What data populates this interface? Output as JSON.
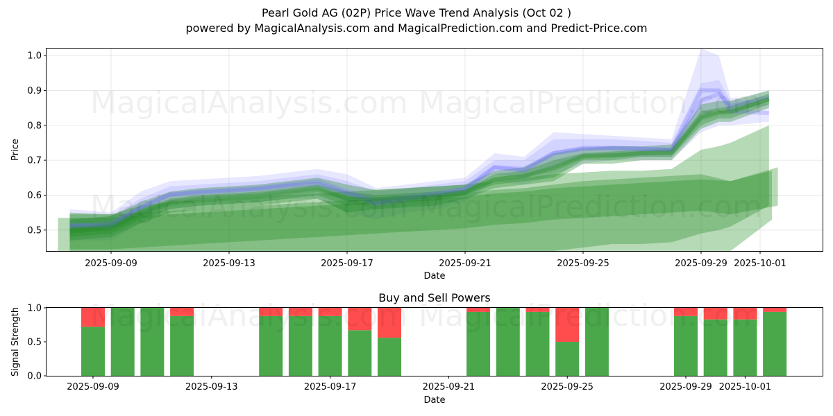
{
  "header": {
    "title": "Pearl Gold AG (02P) Price Wave Trend Analysis (Oct 02 )",
    "subtitle": "powered by MagicalAnalysis.com and MagicalPrediction.com and Predict-Price.com"
  },
  "watermarks": [
    "MagicalAnalysis.com",
    "MagicalPrediction.com"
  ],
  "colors": {
    "green": "#228b22",
    "blue": "#6b6bff",
    "buy": "#4aa84a",
    "sell": "#ff4d4d"
  },
  "chart_data": [
    {
      "type": "area",
      "title": "",
      "xlabel": "Date",
      "ylabel": "Price",
      "ylim": [
        0.44,
        1.02
      ],
      "yticks": [
        "0.5",
        "0.6",
        "0.7",
        "0.8",
        "0.9",
        "1.0"
      ],
      "xticks": [
        "2025-09-09",
        "2025-09-13",
        "2025-09-17",
        "2025-09-21",
        "2025-09-25",
        "2025-09-29",
        "2025-10-01"
      ],
      "date_origin": "2025-09-09",
      "series": [
        {
          "name": "blue-band-1",
          "color": "blue",
          "x": [
            -1.4,
            0,
            1,
            2,
            3,
            4,
            5,
            6,
            7,
            8,
            9,
            10,
            11,
            12,
            13,
            14,
            15,
            16,
            17,
            18,
            19,
            20,
            20.6,
            21,
            22.3
          ],
          "upper": [
            0.56,
            0.55,
            0.61,
            0.64,
            0.645,
            0.65,
            0.655,
            0.665,
            0.675,
            0.66,
            0.62,
            0.63,
            0.64,
            0.65,
            0.72,
            0.71,
            0.78,
            0.775,
            0.77,
            0.765,
            0.76,
            1.02,
            1.0,
            0.88,
            0.86
          ],
          "lower": [
            0.47,
            0.47,
            0.52,
            0.56,
            0.57,
            0.575,
            0.58,
            0.59,
            0.59,
            0.55,
            0.53,
            0.55,
            0.56,
            0.58,
            0.64,
            0.63,
            0.66,
            0.69,
            0.7,
            0.7,
            0.7,
            0.78,
            0.8,
            0.8,
            0.81
          ]
        },
        {
          "name": "blue-band-2",
          "color": "blue",
          "x": [
            -1.4,
            0,
            1,
            2,
            3,
            4,
            5,
            6,
            7,
            8,
            9,
            10,
            11,
            12,
            13,
            14,
            15,
            16,
            17,
            18,
            19,
            20,
            20.6,
            21,
            22.3
          ],
          "upper": [
            0.53,
            0.54,
            0.59,
            0.625,
            0.63,
            0.635,
            0.64,
            0.65,
            0.66,
            0.64,
            0.61,
            0.62,
            0.63,
            0.64,
            0.7,
            0.7,
            0.76,
            0.76,
            0.76,
            0.755,
            0.75,
            0.92,
            0.93,
            0.87,
            0.9
          ],
          "lower": [
            0.49,
            0.5,
            0.54,
            0.58,
            0.59,
            0.595,
            0.6,
            0.61,
            0.62,
            0.58,
            0.56,
            0.57,
            0.58,
            0.6,
            0.66,
            0.65,
            0.68,
            0.71,
            0.71,
            0.71,
            0.71,
            0.82,
            0.85,
            0.84,
            0.86
          ]
        },
        {
          "name": "green-band-1",
          "color": "green",
          "x": [
            -1.4,
            0,
            1,
            2,
            3,
            4,
            5,
            6,
            7,
            8,
            9,
            10,
            11,
            12,
            13,
            14,
            15,
            16,
            17,
            18,
            19,
            20,
            20.6,
            21,
            22.3
          ],
          "upper": [
            0.53,
            0.54,
            0.58,
            0.61,
            0.62,
            0.625,
            0.63,
            0.64,
            0.65,
            0.63,
            0.615,
            0.62,
            0.625,
            0.63,
            0.67,
            0.68,
            0.72,
            0.735,
            0.74,
            0.74,
            0.745,
            0.86,
            0.87,
            0.87,
            0.9
          ],
          "lower": [
            0.47,
            0.48,
            0.52,
            0.55,
            0.56,
            0.565,
            0.57,
            0.58,
            0.59,
            0.55,
            0.56,
            0.565,
            0.57,
            0.59,
            0.62,
            0.63,
            0.64,
            0.69,
            0.69,
            0.7,
            0.7,
            0.79,
            0.81,
            0.81,
            0.85
          ]
        },
        {
          "name": "green-band-2",
          "color": "green",
          "x": [
            -1.4,
            0,
            1,
            2,
            3,
            4,
            5,
            6,
            7,
            8,
            9,
            10,
            11,
            12,
            13,
            14,
            15,
            16,
            17,
            18,
            19,
            20,
            20.6,
            21,
            22.3
          ],
          "upper": [
            0.51,
            0.52,
            0.56,
            0.59,
            0.6,
            0.605,
            0.61,
            0.62,
            0.63,
            0.61,
            0.6,
            0.605,
            0.61,
            0.615,
            0.66,
            0.67,
            0.7,
            0.72,
            0.725,
            0.73,
            0.735,
            0.84,
            0.85,
            0.855,
            0.89
          ],
          "lower": [
            0.48,
            0.49,
            0.53,
            0.56,
            0.57,
            0.575,
            0.58,
            0.59,
            0.6,
            0.57,
            0.575,
            0.58,
            0.585,
            0.6,
            0.63,
            0.64,
            0.65,
            0.7,
            0.7,
            0.71,
            0.71,
            0.8,
            0.82,
            0.82,
            0.86
          ]
        },
        {
          "name": "green-band-3",
          "color": "green",
          "x": [
            -1.4,
            0,
            1,
            2,
            3,
            4,
            5,
            6,
            7,
            8,
            9,
            10,
            11,
            12,
            13,
            14,
            15,
            16,
            17,
            18,
            19,
            20,
            20.6,
            21,
            22.3
          ],
          "upper": [
            0.55,
            0.545,
            0.57,
            0.58,
            0.585,
            0.59,
            0.595,
            0.6,
            0.605,
            0.61,
            0.615,
            0.62,
            0.625,
            0.63,
            0.64,
            0.65,
            0.66,
            0.665,
            0.67,
            0.67,
            0.675,
            0.73,
            0.74,
            0.75,
            0.8
          ],
          "lower": [
            0.44,
            0.44,
            0.44,
            0.44,
            0.44,
            0.44,
            0.44,
            0.44,
            0.44,
            0.44,
            0.44,
            0.44,
            0.44,
            0.44,
            0.44,
            0.44,
            0.44,
            0.45,
            0.46,
            0.46,
            0.465,
            0.49,
            0.5,
            0.51,
            0.57
          ]
        },
        {
          "name": "green-band-4",
          "color": "green",
          "x": [
            -1.8,
            -0.2,
            1,
            2,
            3,
            4,
            5,
            6,
            7,
            8,
            9,
            10,
            11,
            12,
            13,
            14,
            15,
            16,
            17,
            18,
            19,
            20,
            21,
            22.4
          ],
          "upper": [
            0.535,
            0.535,
            0.54,
            0.545,
            0.55,
            0.555,
            0.56,
            0.565,
            0.57,
            0.575,
            0.58,
            0.585,
            0.59,
            0.595,
            0.605,
            0.61,
            0.62,
            0.625,
            0.63,
            0.635,
            0.64,
            0.645,
            0.64,
            0.67
          ],
          "lower": [
            0.44,
            0.44,
            0.44,
            0.44,
            0.44,
            0.44,
            0.44,
            0.44,
            0.44,
            0.44,
            0.44,
            0.44,
            0.44,
            0.44,
            0.44,
            0.44,
            0.44,
            0.44,
            0.44,
            0.44,
            0.44,
            0.44,
            0.44,
            0.53
          ]
        },
        {
          "name": "green-band-5",
          "color": "green",
          "x": [
            -1.4,
            0,
            1,
            2,
            3,
            4,
            5,
            6,
            7,
            8,
            9,
            10,
            11,
            12,
            13,
            14,
            15,
            16,
            17,
            18,
            19,
            20,
            21,
            22.6
          ],
          "upper": [
            0.545,
            0.545,
            0.55,
            0.555,
            0.56,
            0.565,
            0.57,
            0.575,
            0.58,
            0.585,
            0.59,
            0.595,
            0.6,
            0.605,
            0.615,
            0.62,
            0.63,
            0.64,
            0.645,
            0.65,
            0.655,
            0.66,
            0.64,
            0.68
          ],
          "lower": [
            0.445,
            0.445,
            0.45,
            0.455,
            0.46,
            0.465,
            0.47,
            0.475,
            0.48,
            0.485,
            0.49,
            0.495,
            0.5,
            0.505,
            0.515,
            0.52,
            0.53,
            0.535,
            0.54,
            0.545,
            0.55,
            0.555,
            0.545,
            0.57
          ]
        }
      ]
    },
    {
      "type": "bar",
      "title": "Buy and Sell Powers",
      "xlabel": "Date",
      "ylabel": "Signal Strength",
      "ylim": [
        0,
        1
      ],
      "yticks": [
        "0.0",
        "0.5",
        "1.0"
      ],
      "xticks": [
        "2025-09-09",
        "2025-09-13",
        "2025-09-17",
        "2025-09-21",
        "2025-09-25",
        "2025-09-29",
        "2025-10-01"
      ],
      "date_origin": "2025-09-09",
      "x": [
        0,
        1,
        2,
        3,
        6,
        7,
        8,
        9,
        10,
        13,
        14,
        15,
        16,
        17,
        20,
        21,
        22,
        23
      ],
      "series": [
        {
          "name": "Buy",
          "color": "buy",
          "values": [
            0.72,
            1.0,
            1.0,
            0.88,
            0.88,
            0.88,
            0.88,
            0.67,
            0.56,
            0.94,
            1.0,
            0.94,
            0.5,
            1.0,
            0.88,
            0.83,
            0.83,
            0.94
          ]
        },
        {
          "name": "Sell",
          "color": "sell",
          "values": [
            0.28,
            0.0,
            0.0,
            0.12,
            0.12,
            0.12,
            0.12,
            0.33,
            0.44,
            0.06,
            0.0,
            0.06,
            0.5,
            0.0,
            0.12,
            0.17,
            0.17,
            0.06
          ]
        }
      ]
    }
  ]
}
